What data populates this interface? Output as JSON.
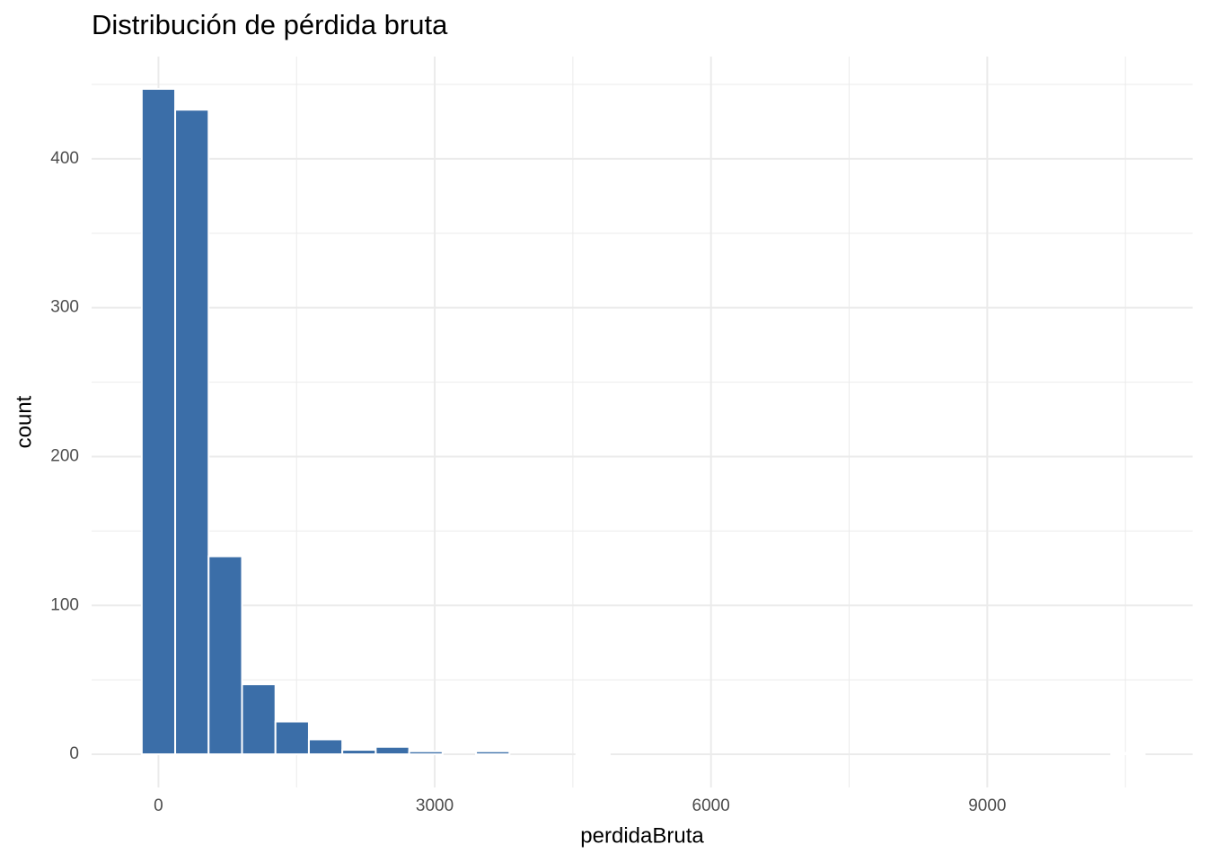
{
  "chart_data": {
    "type": "histogram",
    "title": "Distribución de pérdida bruta",
    "x_label": "perdidaBruta",
    "y_label": "count",
    "bins": [
      -181.5,
      181.5,
      544.5,
      907.5,
      1270.5,
      1633.5,
      1996.5,
      2359.5,
      2722.5,
      3085.5,
      3448.5,
      3811.5,
      4174.5,
      4537.5,
      4900.5,
      5263.5,
      5626.5,
      5989.5,
      6352.5,
      6715.5,
      7078.5,
      7441.5,
      7804.5,
      8167.5,
      8530.5,
      8893.5,
      9256.5,
      9619.5,
      9982.5,
      10345.5,
      10708.5
    ],
    "values": [
      447,
      433,
      133,
      47,
      22,
      10,
      3,
      5,
      2,
      0,
      2,
      0,
      0,
      1,
      0,
      0,
      0,
      0,
      0,
      0,
      0,
      0,
      0,
      0,
      0,
      0,
      0,
      0,
      0,
      1
    ],
    "color": "#3b6ea8",
    "xlim": [
      -726,
      11230
    ],
    "xticks": [
      0,
      3000,
      6000,
      9000
    ],
    "ylim": [
      -22.3,
      468.7
    ],
    "yticks": [
      0,
      100,
      200,
      300,
      400
    ],
    "grid": true,
    "minor_grid": true
  }
}
